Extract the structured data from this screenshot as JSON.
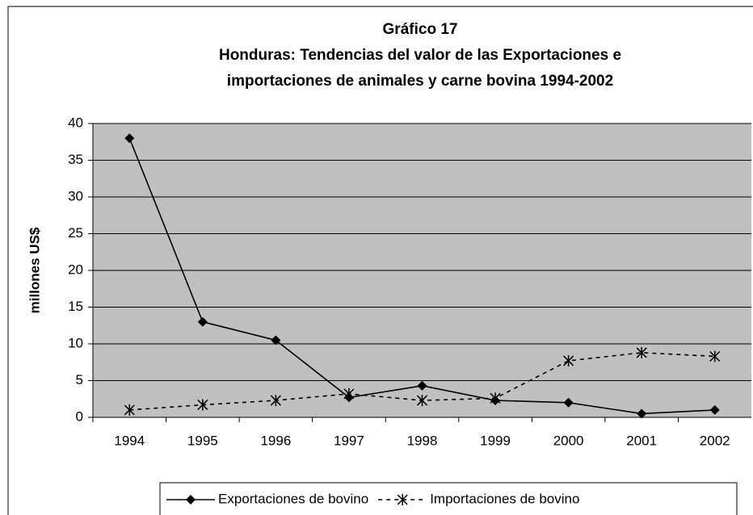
{
  "chart_data": {
    "type": "line",
    "title": [
      "Gráfico 17",
      "Honduras: Tendencias del valor de las Exportaciones e",
      "importaciones de animales y carne bovina 1994-2002"
    ],
    "y_label": "millones US$",
    "categories": [
      "1994",
      "1995",
      "1996",
      "1997",
      "1998",
      "1999",
      "2000",
      "2001",
      "2002"
    ],
    "series": [
      {
        "name": "Exportaciones de bovino",
        "color": "#000000",
        "values": [
          38,
          13,
          10.5,
          2.7,
          4.3,
          2.3,
          2.0,
          0.5,
          1.0
        ]
      },
      {
        "name": "Importaciones de bovino",
        "color": "#000000",
        "values": [
          1.0,
          1.7,
          2.3,
          3.2,
          2.3,
          2.6,
          7.7,
          8.8,
          8.3
        ]
      }
    ],
    "ylim": [
      0,
      40
    ],
    "yticks": [
      0,
      5,
      10,
      15,
      20,
      25,
      30,
      35,
      40
    ],
    "grid": true,
    "legend": "bottom"
  }
}
